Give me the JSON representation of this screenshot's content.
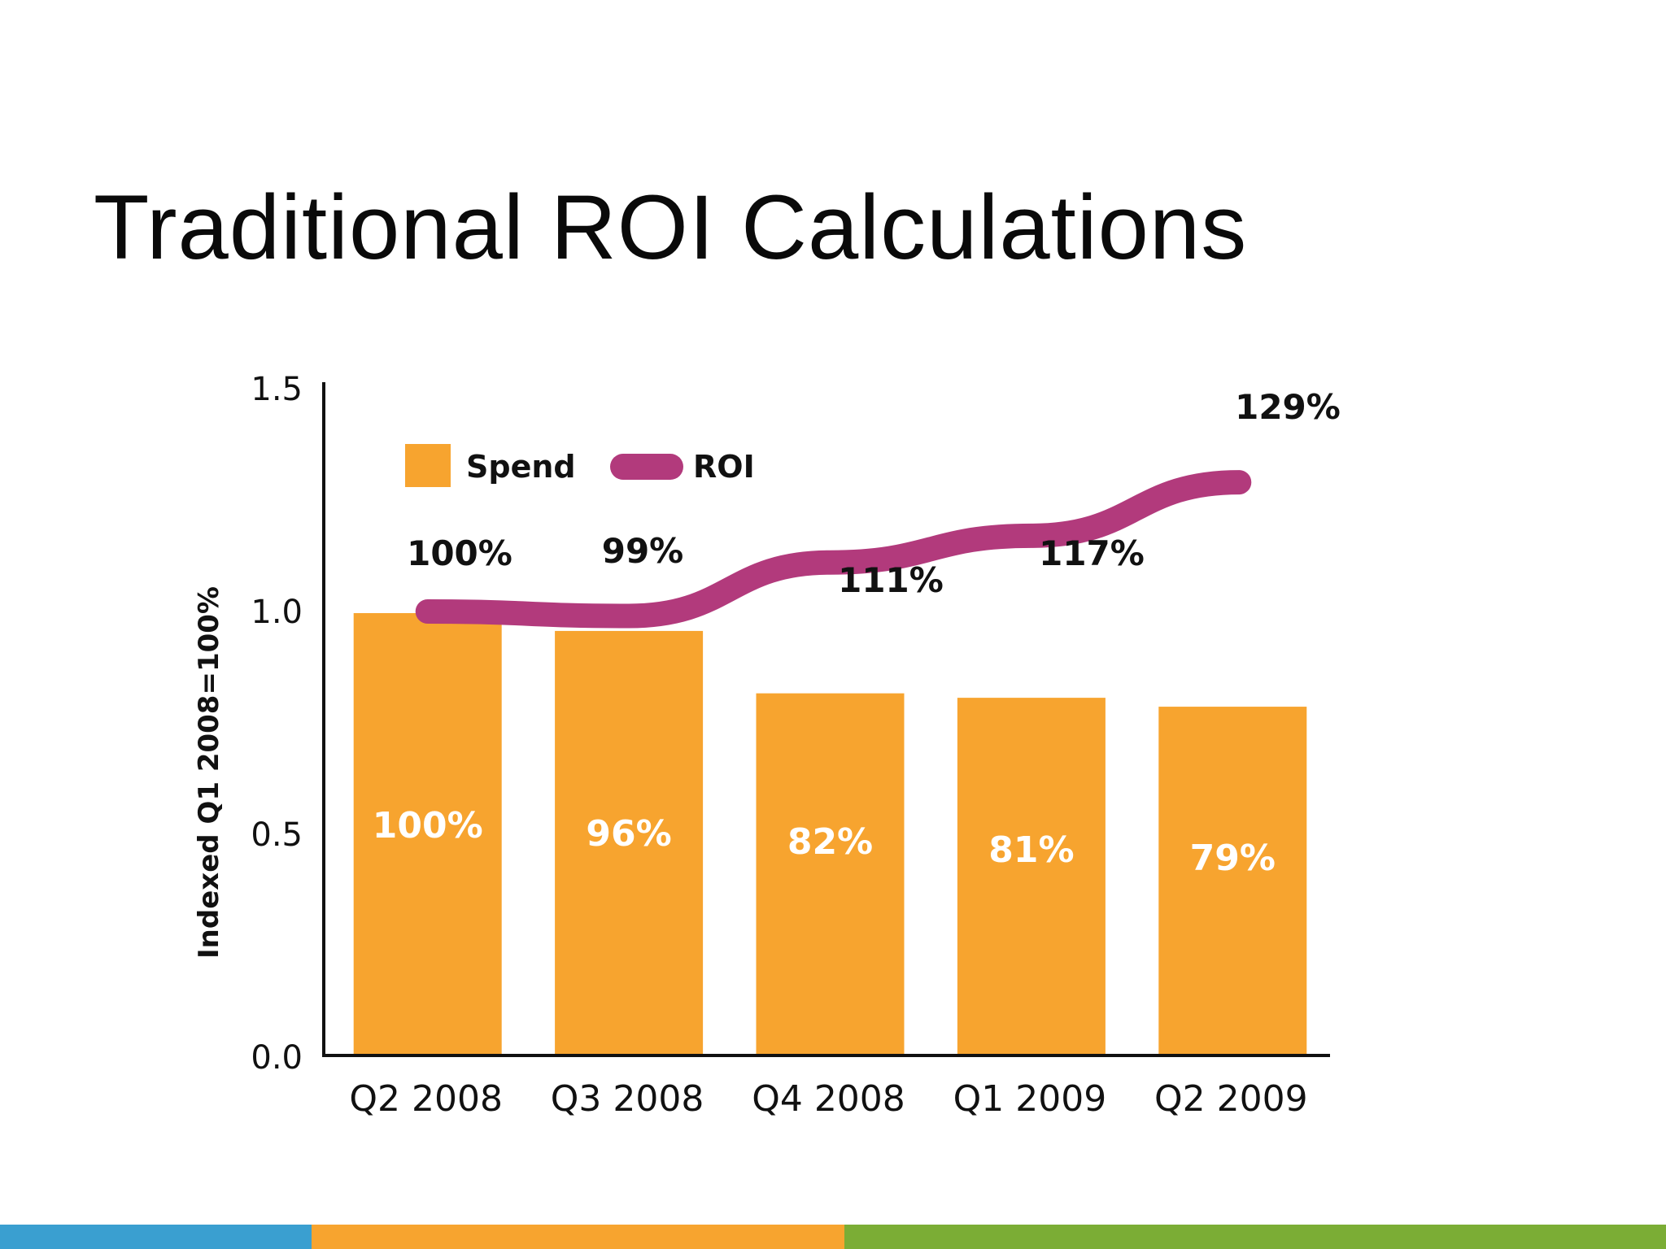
{
  "slide": {
    "title": "Traditional ROI Calculations"
  },
  "chart_data": {
    "type": "bar",
    "title": "",
    "xlabel": "",
    "ylabel": "Indexed Q1 2008=100%",
    "ylim": [
      0,
      1.5
    ],
    "yticks": [
      "0.0",
      "0.5",
      "1.0",
      "1.5"
    ],
    "ytick_values": [
      0,
      0.5,
      1.0,
      1.5
    ],
    "categories": [
      "Q2 2008",
      "Q3 2008",
      "Q4 2008",
      "Q1 2009",
      "Q2 2009"
    ],
    "series": [
      {
        "name": "Spend",
        "type": "bar",
        "values": [
          1.0,
          0.96,
          0.82,
          0.81,
          0.79
        ],
        "labels": [
          "100%",
          "96%",
          "82%",
          "81%",
          "79%"
        ],
        "color": "#F7A42F"
      },
      {
        "name": "ROI",
        "type": "line",
        "values": [
          1.0,
          0.99,
          1.11,
          1.17,
          1.29
        ],
        "labels": [
          "100%",
          "99%",
          "111%",
          "117%",
          "129%"
        ],
        "color": "#B23A7C"
      }
    ],
    "legend": {
      "placement": "top-left"
    },
    "grid": false
  },
  "footer": {
    "colors": [
      "#3A9FD0",
      "#F7A42F",
      "#7BAD35"
    ]
  }
}
